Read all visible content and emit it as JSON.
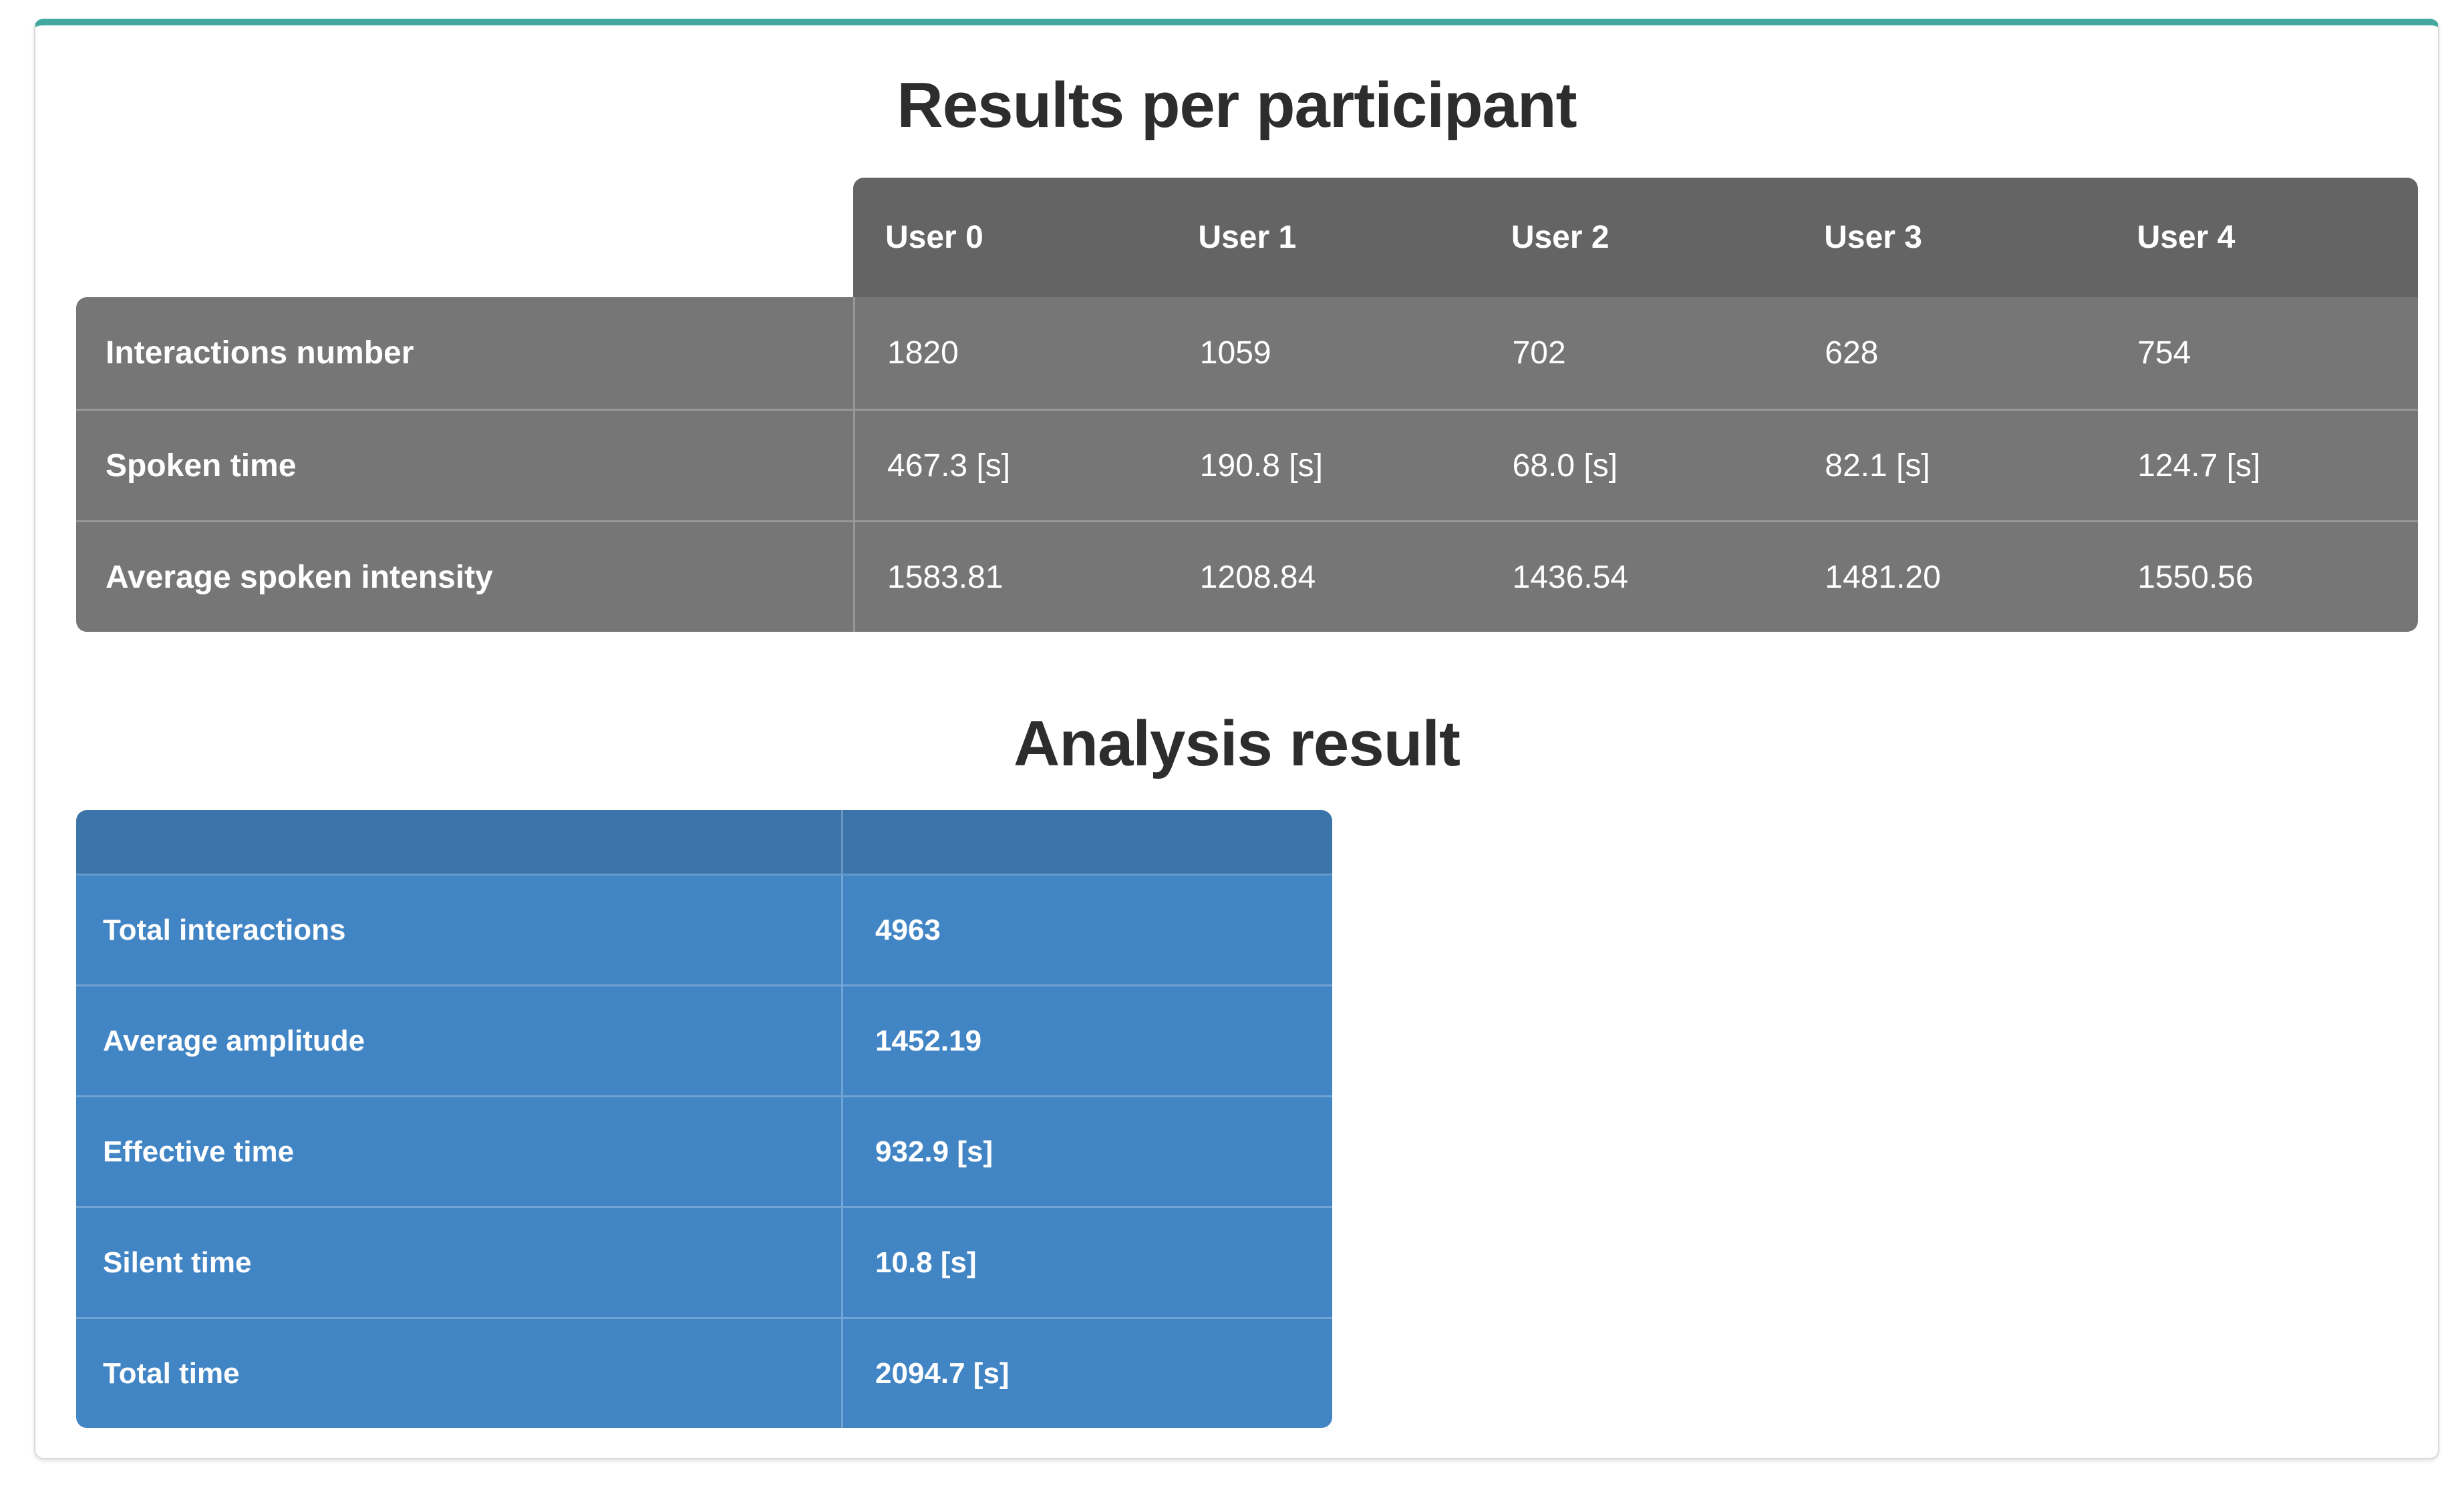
{
  "results": {
    "title": "Results per participant",
    "headers": [
      "User 0",
      "User 1",
      "User 2",
      "User 3",
      "User 4"
    ],
    "rows": [
      {
        "label": "Interactions number",
        "values": [
          "1820",
          "1059",
          "702",
          "628",
          "754"
        ]
      },
      {
        "label": "Spoken time",
        "values": [
          "467.3 [s]",
          "190.8 [s]",
          "68.0 [s]",
          "82.1 [s]",
          "124.7 [s]"
        ]
      },
      {
        "label": "Average spoken intensity",
        "values": [
          "1583.81",
          "1208.84",
          "1436.54",
          "1481.20",
          "1550.56"
        ]
      }
    ]
  },
  "analysis": {
    "title": "Analysis result",
    "rows": [
      {
        "label": "Total interactions",
        "value": "4963"
      },
      {
        "label": "Average amplitude",
        "value": "1452.19"
      },
      {
        "label": "Effective time",
        "value": "932.9 [s]"
      },
      {
        "label": "Silent time",
        "value": "10.8 [s]"
      },
      {
        "label": "Total time",
        "value": "2094.7 [s]"
      }
    ]
  },
  "colors": {
    "accent_teal": "#43a99f",
    "gray_header": "#646464",
    "gray_row": "#767676",
    "blue_header": "#3a74a8",
    "blue_row": "#4285c5",
    "card_border": "#d9d9d9",
    "title_color": "#2d2d2d",
    "cell_text": "#ffffff"
  }
}
